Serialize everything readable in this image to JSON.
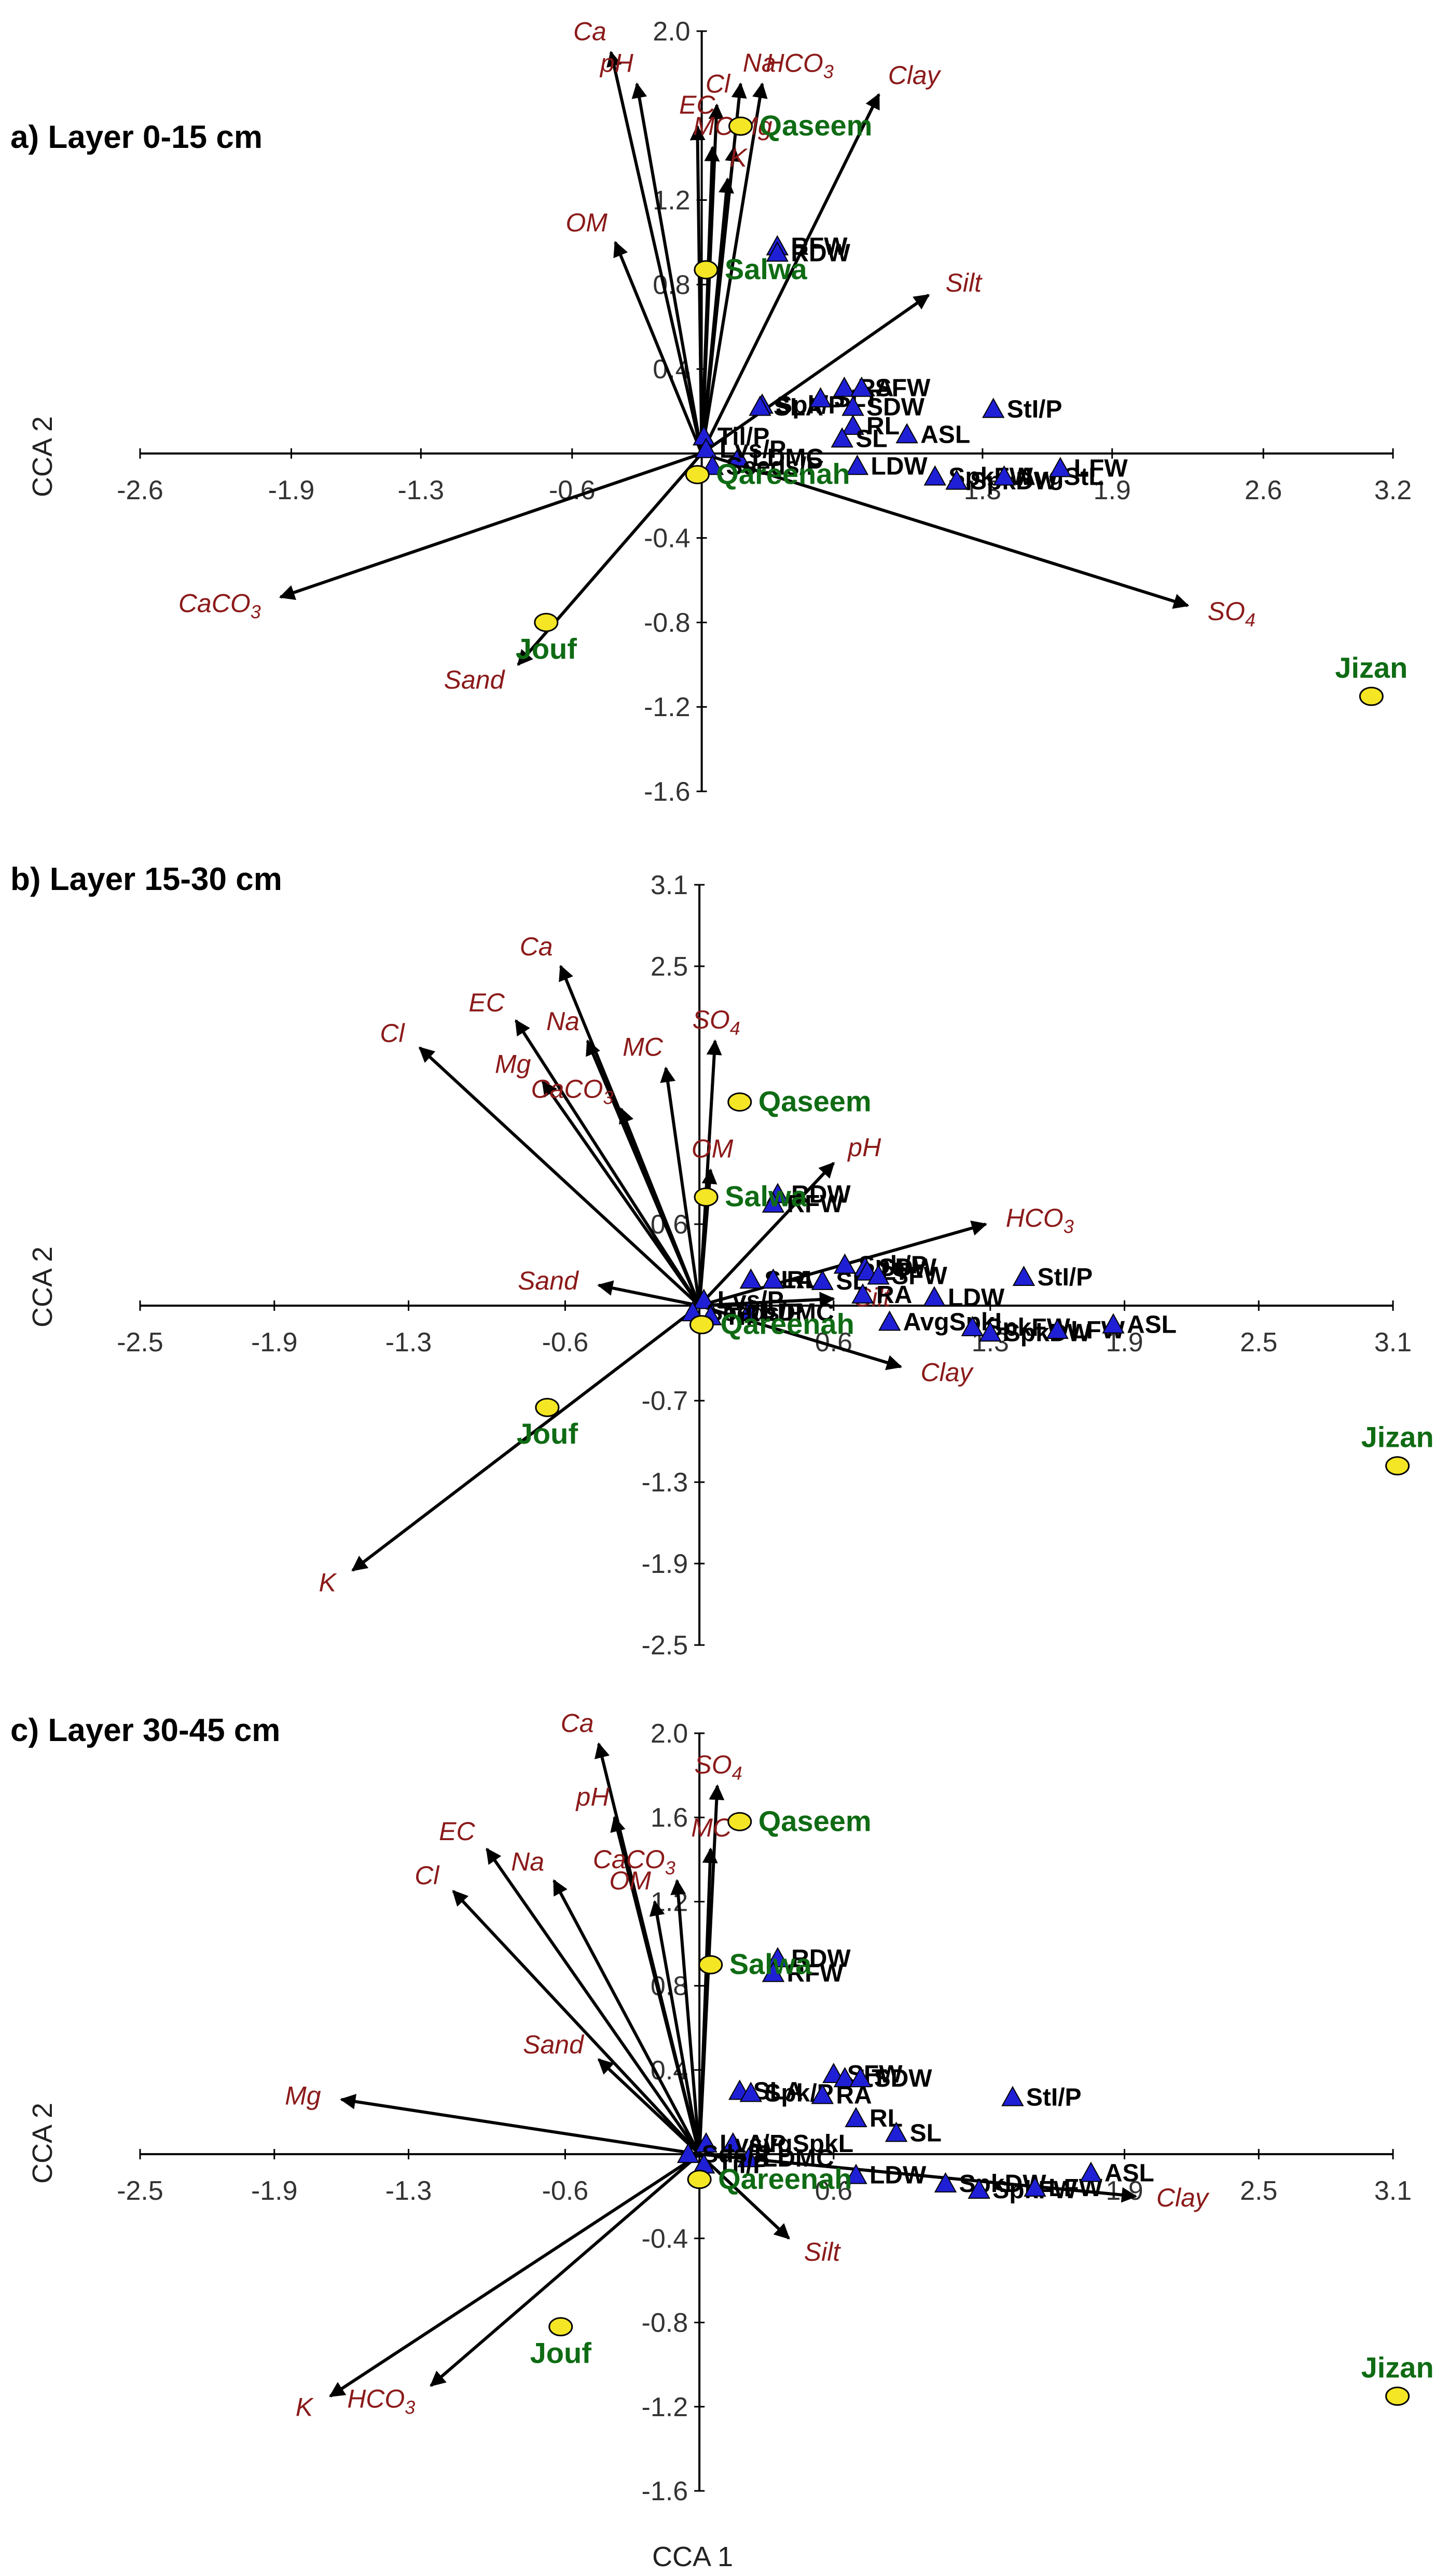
{
  "figure": {
    "x_axis_title": "CCA 1"
  },
  "chart_data": [
    {
      "type": "scatter",
      "title": "a) Layer 0-15 cm",
      "ylabel": "CCA 2",
      "xlim": [
        -2.6,
        3.2
      ],
      "ylim": [
        -1.6,
        2.0
      ],
      "x_ticks": [
        -2.6,
        -1.9,
        -1.3,
        -0.6,
        1.3,
        1.9,
        2.6,
        3.2
      ],
      "x_tick_labels": [
        "-2.6",
        "-1.9",
        "-1.3",
        "-0.6",
        "1.3",
        "1.9",
        "2.6",
        "3.2"
      ],
      "y_ticks": [
        -1.6,
        -1.2,
        -0.8,
        -0.4,
        0.4,
        0.8,
        1.2,
        2.0
      ],
      "y_tick_labels": [
        "-1.6",
        "-1.2",
        "-0.8",
        "-0.4",
        "0.4",
        "0.8",
        "1.2",
        "2.0"
      ],
      "environment_vectors": [
        {
          "name": "Ca",
          "x": -0.42,
          "y": 1.9
        },
        {
          "name": "pH",
          "x": -0.3,
          "y": 1.75
        },
        {
          "name": "Cl",
          "x": 0.07,
          "y": 1.65
        },
        {
          "name": "Na",
          "x": 0.18,
          "y": 1.75
        },
        {
          "name": "HCO3",
          "x": 0.28,
          "y": 1.75
        },
        {
          "name": "EC",
          "x": -0.02,
          "y": 1.55
        },
        {
          "name": "Clay",
          "x": 0.82,
          "y": 1.7
        },
        {
          "name": "MC",
          "x": 0.05,
          "y": 1.45
        },
        {
          "name": "Mg",
          "x": 0.15,
          "y": 1.45
        },
        {
          "name": "K",
          "x": 0.12,
          "y": 1.3
        },
        {
          "name": "OM",
          "x": -0.4,
          "y": 1.0
        },
        {
          "name": "Silt",
          "x": 1.05,
          "y": 0.75
        },
        {
          "name": "CaCO3",
          "x": -1.95,
          "y": -0.68
        },
        {
          "name": "Sand",
          "x": -0.85,
          "y": -1.0
        },
        {
          "name": "SO4",
          "x": 2.25,
          "y": -0.72
        }
      ],
      "traits": [
        {
          "name": "RFW",
          "x": 0.35,
          "y": 0.98
        },
        {
          "name": "RDW",
          "x": 0.35,
          "y": 0.95
        },
        {
          "name": "Spk/P",
          "x": 0.28,
          "y": 0.23
        },
        {
          "name": "SLA",
          "x": 0.27,
          "y": 0.22
        },
        {
          "name": "SLT",
          "x": 0.55,
          "y": 0.26
        },
        {
          "name": "RA",
          "x": 0.66,
          "y": 0.31
        },
        {
          "name": "SFW",
          "x": 0.74,
          "y": 0.31
        },
        {
          "name": "SDW",
          "x": 0.7,
          "y": 0.22
        },
        {
          "name": "RL",
          "x": 0.7,
          "y": 0.13
        },
        {
          "name": "SL",
          "x": 0.65,
          "y": 0.07
        },
        {
          "name": "ASL",
          "x": 0.95,
          "y": 0.09
        },
        {
          "name": "StI/P",
          "x": 1.35,
          "y": 0.21
        },
        {
          "name": "LDMC",
          "x": 0.17,
          "y": -0.02
        },
        {
          "name": "LDW",
          "x": 0.72,
          "y": -0.06
        },
        {
          "name": "SpkFW",
          "x": 1.08,
          "y": -0.11
        },
        {
          "name": "SpkDW",
          "x": 1.18,
          "y": -0.13
        },
        {
          "name": "AvgStL",
          "x": 1.4,
          "y": -0.11
        },
        {
          "name": "LFW",
          "x": 1.66,
          "y": -0.07
        },
        {
          "name": "Til/P",
          "x": 0.01,
          "y": 0.08
        },
        {
          "name": "Lvs/P",
          "x": 0.02,
          "y": 0.02
        },
        {
          "name": "Seeds/P",
          "x": 0.05,
          "y": -0.06
        }
      ],
      "sites": [
        {
          "name": "Qaseem",
          "x": 0.18,
          "y": 1.55
        },
        {
          "name": "Salwa",
          "x": 0.02,
          "y": 0.87
        },
        {
          "name": "Qareenah",
          "x": -0.02,
          "y": -0.1
        },
        {
          "name": "Jouf",
          "x": -0.72,
          "y": -0.8
        },
        {
          "name": "Jizan",
          "x": 3.1,
          "y": -1.15
        }
      ]
    },
    {
      "type": "scatter",
      "title": "b) Layer 15-30 cm",
      "ylabel": "CCA 2",
      "xlim": [
        -2.5,
        3.1
      ],
      "ylim": [
        -2.5,
        3.1
      ],
      "x_ticks": [
        -2.5,
        -1.9,
        -1.3,
        -0.6,
        0.6,
        1.3,
        1.9,
        2.5,
        3.1
      ],
      "x_tick_labels": [
        "-2.5",
        "-1.9",
        "-1.3",
        "-0.6",
        "0.6",
        "1.3",
        "1.9",
        "2.5",
        "3.1"
      ],
      "y_ticks": [
        -2.5,
        -1.9,
        -1.3,
        -0.7,
        0.6,
        2.5,
        3.1
      ],
      "y_tick_labels": [
        "-2.5",
        "-1.9",
        "-1.3",
        "-0.7",
        "0.6",
        "2.5",
        "3.1"
      ],
      "environment_vectors": [
        {
          "name": "Cl",
          "x": -1.25,
          "y": 1.9
        },
        {
          "name": "EC",
          "x": -0.82,
          "y": 2.1
        },
        {
          "name": "Ca",
          "x": -0.62,
          "y": 2.5
        },
        {
          "name": "Na",
          "x": -0.5,
          "y": 1.95
        },
        {
          "name": "Mg",
          "x": -0.7,
          "y": 1.65
        },
        {
          "name": "MC",
          "x": -0.15,
          "y": 1.75
        },
        {
          "name": "CaCO3",
          "x": -0.35,
          "y": 1.45
        },
        {
          "name": "SO4",
          "x": 0.07,
          "y": 1.95
        },
        {
          "name": "OM",
          "x": 0.05,
          "y": 1.0
        },
        {
          "name": "pH",
          "x": 0.6,
          "y": 1.05
        },
        {
          "name": "HCO3",
          "x": 1.28,
          "y": 0.6
        },
        {
          "name": "Sand",
          "x": -0.45,
          "y": 0.15
        },
        {
          "name": "Silt",
          "x": 0.6,
          "y": 0.05
        },
        {
          "name": "Clay",
          "x": 0.9,
          "y": -0.45
        },
        {
          "name": "K",
          "x": -1.55,
          "y": -1.95
        }
      ],
      "traits": [
        {
          "name": "RDW",
          "x": 0.35,
          "y": 0.82
        },
        {
          "name": "RFW",
          "x": 0.33,
          "y": 0.75
        },
        {
          "name": "SLA",
          "x": 0.23,
          "y": 0.19
        },
        {
          "name": "RL",
          "x": 0.33,
          "y": 0.19
        },
        {
          "name": "SL",
          "x": 0.55,
          "y": 0.18
        },
        {
          "name": "Spk/P",
          "x": 0.65,
          "y": 0.3
        },
        {
          "name": "SDW",
          "x": 0.74,
          "y": 0.28
        },
        {
          "name": "LT",
          "x": 0.75,
          "y": 0.25
        },
        {
          "name": "SFW",
          "x": 0.8,
          "y": 0.22
        },
        {
          "name": "RA",
          "x": 0.73,
          "y": 0.08
        },
        {
          "name": "LDW",
          "x": 1.05,
          "y": 0.06
        },
        {
          "name": "StI/P",
          "x": 1.45,
          "y": 0.21
        },
        {
          "name": "LDMC",
          "x": 0.22,
          "y": -0.05
        },
        {
          "name": "AvgSpkL",
          "x": 0.85,
          "y": -0.12
        },
        {
          "name": "SpkFW",
          "x": 1.22,
          "y": -0.16
        },
        {
          "name": "SpkDW",
          "x": 1.3,
          "y": -0.2
        },
        {
          "name": "LFW",
          "x": 1.6,
          "y": -0.18
        },
        {
          "name": "ASL",
          "x": 1.85,
          "y": -0.14
        },
        {
          "name": "Lvs/P",
          "x": 0.02,
          "y": 0.04
        },
        {
          "name": "Seeds/P",
          "x": -0.03,
          "y": -0.05
        },
        {
          "name": "Til/P",
          "x": 0.05,
          "y": -0.08
        }
      ],
      "sites": [
        {
          "name": "Qaseem",
          "x": 0.18,
          "y": 1.5
        },
        {
          "name": "Salwa",
          "x": 0.03,
          "y": 0.8
        },
        {
          "name": "Qareenah",
          "x": 0.01,
          "y": -0.14
        },
        {
          "name": "Jouf",
          "x": -0.68,
          "y": -0.75
        },
        {
          "name": "Jizan",
          "x": 3.12,
          "y": -1.18
        }
      ]
    },
    {
      "type": "scatter",
      "title": "c) Layer 30-45 cm",
      "ylabel": "CCA 2",
      "xlim": [
        -2.5,
        3.1
      ],
      "ylim": [
        -1.6,
        2.0
      ],
      "x_ticks": [
        -2.5,
        -1.9,
        -1.3,
        -0.6,
        0.6,
        1.9,
        2.5,
        3.1
      ],
      "x_tick_labels": [
        "-2.5",
        "-1.9",
        "-1.3",
        "-0.6",
        "0.6",
        "1.9",
        "2.5",
        "3.1"
      ],
      "y_ticks": [
        -1.6,
        -1.2,
        -0.8,
        -0.4,
        0.4,
        0.8,
        1.2,
        1.6,
        2.0
      ],
      "y_tick_labels": [
        "-1.6",
        "-1.2",
        "-0.8",
        "-0.4",
        "0.4",
        "0.8",
        "1.2",
        "1.6",
        "2.0"
      ],
      "environment_vectors": [
        {
          "name": "Ca",
          "x": -0.45,
          "y": 1.95
        },
        {
          "name": "pH",
          "x": -0.38,
          "y": 1.6
        },
        {
          "name": "EC",
          "x": -0.95,
          "y": 1.45
        },
        {
          "name": "Na",
          "x": -0.65,
          "y": 1.3
        },
        {
          "name": "Cl",
          "x": -1.1,
          "y": 1.25
        },
        {
          "name": "OM",
          "x": -0.2,
          "y": 1.2
        },
        {
          "name": "CaCO3",
          "x": -0.1,
          "y": 1.3
        },
        {
          "name": "SO4",
          "x": 0.08,
          "y": 1.75
        },
        {
          "name": "MC",
          "x": 0.05,
          "y": 1.45
        },
        {
          "name": "Mg",
          "x": -1.6,
          "y": 0.26
        },
        {
          "name": "Sand",
          "x": -0.45,
          "y": 0.45
        },
        {
          "name": "Silt",
          "x": 0.4,
          "y": -0.4
        },
        {
          "name": "Clay",
          "x": 1.95,
          "y": -0.2
        },
        {
          "name": "K",
          "x": -1.65,
          "y": -1.15
        },
        {
          "name": "HCO3",
          "x": -1.2,
          "y": -1.1
        }
      ],
      "traits": [
        {
          "name": "RDW",
          "x": 0.35,
          "y": 0.93
        },
        {
          "name": "RFW",
          "x": 0.33,
          "y": 0.86
        },
        {
          "name": "SLA",
          "x": 0.18,
          "y": 0.3
        },
        {
          "name": "Spk/P",
          "x": 0.23,
          "y": 0.29
        },
        {
          "name": "RA",
          "x": 0.55,
          "y": 0.28
        },
        {
          "name": "SFW",
          "x": 0.6,
          "y": 0.38
        },
        {
          "name": "LT",
          "x": 0.65,
          "y": 0.36
        },
        {
          "name": "SDW",
          "x": 0.72,
          "y": 0.36
        },
        {
          "name": "RL",
          "x": 0.7,
          "y": 0.17
        },
        {
          "name": "SL",
          "x": 0.88,
          "y": 0.1
        },
        {
          "name": "StI/P",
          "x": 1.4,
          "y": 0.27
        },
        {
          "name": "AvgSpkL",
          "x": 0.15,
          "y": 0.05
        },
        {
          "name": "Lvs/P",
          "x": 0.03,
          "y": 0.05
        },
        {
          "name": "LDMC",
          "x": 0.22,
          "y": -0.02
        },
        {
          "name": "LDW",
          "x": 0.7,
          "y": -0.1
        },
        {
          "name": "SpkDW",
          "x": 1.1,
          "y": -0.14
        },
        {
          "name": "SpkFW",
          "x": 1.25,
          "y": -0.17
        },
        {
          "name": "LFW",
          "x": 1.5,
          "y": -0.16
        },
        {
          "name": "ASL",
          "x": 1.75,
          "y": -0.09
        },
        {
          "name": "Sds/P",
          "x": -0.05,
          "y": 0.0
        },
        {
          "name": "Til/P",
          "x": 0.02,
          "y": -0.05
        }
      ],
      "sites": [
        {
          "name": "Qaseem",
          "x": 0.18,
          "y": 1.58
        },
        {
          "name": "Salwa",
          "x": 0.05,
          "y": 0.9
        },
        {
          "name": "Qareenah",
          "x": 0.0,
          "y": -0.12
        },
        {
          "name": "Jouf",
          "x": -0.62,
          "y": -0.82
        },
        {
          "name": "Jizan",
          "x": 3.12,
          "y": -1.15
        }
      ]
    }
  ]
}
